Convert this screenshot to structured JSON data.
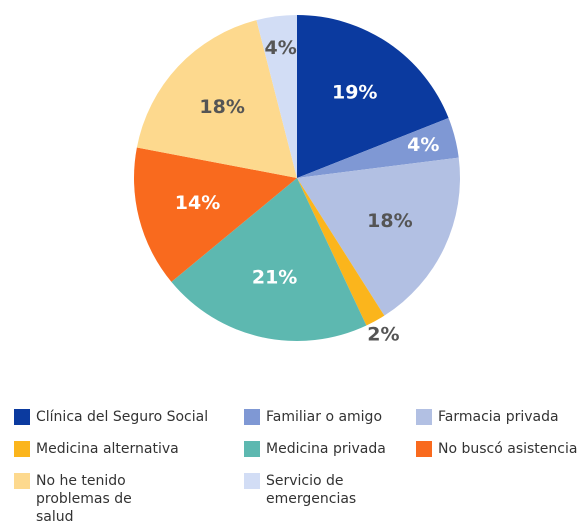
{
  "chart_data": {
    "type": "pie",
    "categories": [
      "Clínica del Seguro Social",
      "Familiar o amigo",
      "Farmacia privada",
      "Medicina alternativa",
      "Medicina privada",
      "No buscó asistencia",
      "No he tenido problemas de salud",
      "Servicio de emergencias"
    ],
    "values": [
      19,
      4,
      18,
      2,
      21,
      14,
      18,
      4
    ],
    "value_labels": [
      "19%",
      "4%",
      "18%",
      "2%",
      "21%",
      "14%",
      "18%",
      "4%"
    ],
    "colors": [
      "#0b3a9f",
      "#7f98d4",
      "#b2c0e3",
      "#fbb51c",
      "#5db8b0",
      "#f96a1e",
      "#fdd98e",
      "#d2ddf5"
    ],
    "legend": "bottom"
  }
}
